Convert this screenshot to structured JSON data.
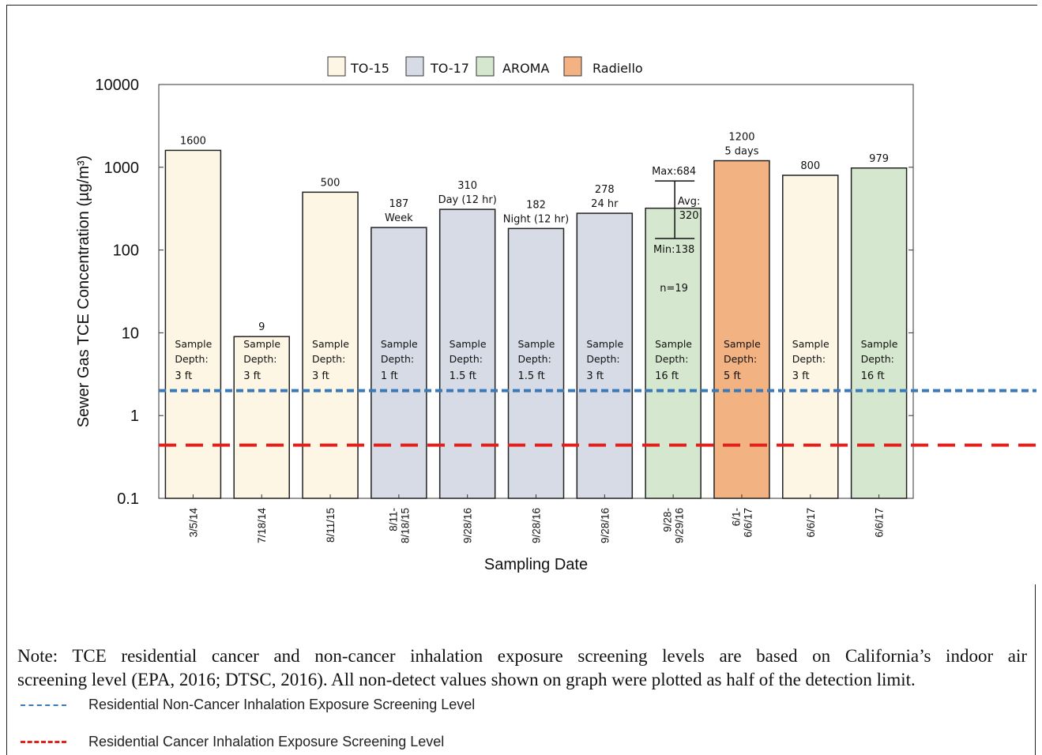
{
  "chart_data": {
    "type": "bar",
    "yscale": "log",
    "ylim": [
      0.1,
      10000
    ],
    "ylabel": "Sewer Gas TCE Concentration (µg/m³)",
    "xlabel": "Sampling Date",
    "y_ticks": [
      "0.1",
      "1",
      "10",
      "100",
      "1000",
      "10000"
    ],
    "legend": {
      "placement": "top",
      "entries": [
        {
          "name": "TO-15",
          "color": "#fdf6e4"
        },
        {
          "name": "TO-17",
          "color": "#d6dbe6"
        },
        {
          "name": "AROMA",
          "color": "#d5e8cf"
        },
        {
          "name": "Radiello",
          "color": "#f2b282"
        }
      ]
    },
    "bars": [
      {
        "date": [
          "3/5/14"
        ],
        "value": 1600,
        "method": "TO-15",
        "labels": [
          "1600"
        ],
        "depth": "3 ft"
      },
      {
        "date": [
          "7/18/14"
        ],
        "value": 9,
        "method": "TO-15",
        "labels": [
          "9"
        ],
        "depth": "3 ft"
      },
      {
        "date": [
          "8/11/15"
        ],
        "value": 500,
        "method": "TO-15",
        "labels": [
          "500"
        ],
        "depth": "3 ft"
      },
      {
        "date": [
          "8/11-",
          "8/18/15"
        ],
        "value": 187,
        "method": "TO-17",
        "labels": [
          "187",
          "Week"
        ],
        "depth": "1 ft"
      },
      {
        "date": [
          "9/28/16"
        ],
        "value": 310,
        "method": "TO-17",
        "labels": [
          "310",
          "Day (12 hr)"
        ],
        "depth": "1.5 ft"
      },
      {
        "date": [
          "9/28/16"
        ],
        "value": 182,
        "method": "TO-17",
        "labels": [
          "182",
          "Night (12 hr)"
        ],
        "depth": "1.5 ft"
      },
      {
        "date": [
          "9/28/16"
        ],
        "value": 278,
        "method": "TO-17",
        "labels": [
          "278",
          "24 hr"
        ],
        "depth": "3 ft"
      },
      {
        "date": [
          "9/28-",
          "9/29/16"
        ],
        "value": 320,
        "method": "AROMA",
        "labels": [],
        "depth": "16 ft",
        "range": {
          "max": 684,
          "min": 138,
          "max_label": "Max:684",
          "min_label": "Min:138",
          "avg_label": [
            "Avg:",
            "320"
          ],
          "n_label": "n=19"
        }
      },
      {
        "date": [
          "6/1-",
          "6/6/17"
        ],
        "value": 1200,
        "method": "Radiello",
        "labels": [
          "1200",
          "5 days"
        ],
        "depth": "5 ft"
      },
      {
        "date": [
          "6/6/17"
        ],
        "value": 800,
        "method": "TO-15",
        "labels": [
          "800"
        ],
        "depth": "3 ft"
      },
      {
        "date": [
          "6/6/17"
        ],
        "value": 979,
        "method": "AROMA",
        "labels": [
          "979"
        ],
        "depth": "16 ft"
      }
    ],
    "sample_depth_label": [
      "Sample",
      "Depth:"
    ],
    "reference_lines": [
      {
        "name": "Residential Non-Cancer Inhalation Exposure Screening Level",
        "value": 2.0,
        "color": "#3a7ab8",
        "style": "dashed"
      },
      {
        "name": "Residential Cancer Inhalation Exposure Screening Level",
        "value": 0.44,
        "color": "#e3211c",
        "style": "long-dashed"
      }
    ]
  },
  "colors": {
    "TO-15": "#fdf6e4",
    "TO-17": "#d6dbe6",
    "AROMA": "#d5e8cf",
    "Radiello": "#f2b282"
  },
  "note": {
    "line1": "Note: TCE residential cancer and non-cancer inhalation exposure screening levels are based on California’s indoor air",
    "line2": "screening level (EPA, 2016; DTSC, 2016). All non-detect values shown on graph were plotted as half of the detection limit."
  },
  "line_legend": {
    "non_cancer": "Residential Non-Cancer Inhalation Exposure Screening Level",
    "cancer": "Residential Cancer Inhalation Exposure Screening Level"
  }
}
